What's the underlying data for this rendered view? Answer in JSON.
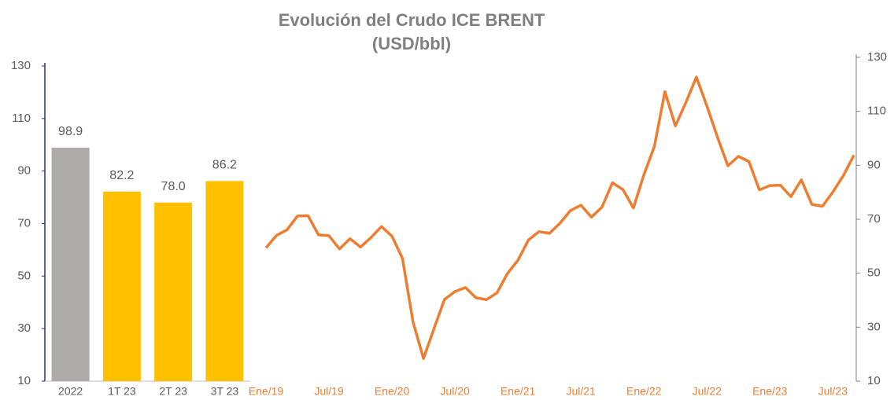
{
  "title": "Evolución del Crudo ICE BRENT",
  "subtitle": "(USD/bbl)",
  "chart_data": [
    {
      "type": "bar",
      "categories": [
        "2022",
        "1T 23",
        "2T 23",
        "3T 23"
      ],
      "values": [
        98.9,
        82.2,
        78.0,
        86.2
      ],
      "value_labels": [
        "98.9",
        "82.2",
        "78.0",
        "86.2"
      ],
      "colors": [
        "#aeaaaa",
        "#ffc000",
        "#ffc000",
        "#ffc000"
      ],
      "ylim": [
        10,
        130
      ],
      "yticks": [
        10,
        30,
        50,
        70,
        90,
        110,
        130
      ]
    },
    {
      "type": "line",
      "x": [
        "2019-01",
        "2019-02",
        "2019-03",
        "2019-04",
        "2019-05",
        "2019-06",
        "2019-07",
        "2019-08",
        "2019-09",
        "2019-10",
        "2019-11",
        "2019-12",
        "2020-01",
        "2020-02",
        "2020-03",
        "2020-04",
        "2020-05",
        "2020-06",
        "2020-07",
        "2020-08",
        "2020-09",
        "2020-10",
        "2020-11",
        "2020-12",
        "2021-01",
        "2021-02",
        "2021-03",
        "2021-04",
        "2021-05",
        "2021-06",
        "2021-07",
        "2021-08",
        "2021-09",
        "2021-10",
        "2021-11",
        "2021-12",
        "2022-01",
        "2022-02",
        "2022-03",
        "2022-04",
        "2022-05",
        "2022-06",
        "2022-07",
        "2022-08",
        "2022-09",
        "2022-10",
        "2022-11",
        "2022-12",
        "2023-01",
        "2023-02",
        "2023-03",
        "2023-04",
        "2023-05",
        "2023-06",
        "2023-07",
        "2023-08",
        "2023-09"
      ],
      "series": [
        {
          "name": "ICE Brent",
          "color": "#ed7d31",
          "values": [
            59.4,
            64.0,
            66.1,
            71.2,
            71.3,
            64.2,
            63.9,
            59.0,
            62.8,
            59.7,
            63.2,
            67.3,
            63.7,
            55.5,
            32.0,
            18.4,
            29.4,
            40.3,
            43.2,
            44.7,
            40.9,
            40.2,
            42.7,
            49.9,
            54.8,
            62.3,
            65.4,
            64.8,
            68.5,
            73.2,
            75.2,
            70.8,
            74.5,
            83.5,
            81.0,
            74.2,
            86.5,
            97.1,
            117.3,
            104.6,
            113.3,
            122.7,
            111.9,
            100.5,
            89.8,
            93.3,
            91.4,
            80.9,
            82.5,
            82.6,
            78.4,
            84.6,
            75.5,
            74.8,
            80.1,
            86.2,
            93.7
          ]
        }
      ],
      "xlim": [
        "2019-01",
        "2023-09"
      ],
      "xticks": [
        {
          "value": "2019-01",
          "label": "Ene/19"
        },
        {
          "value": "2019-07",
          "label": "Jul/19"
        },
        {
          "value": "2020-01",
          "label": "Ene/20"
        },
        {
          "value": "2020-07",
          "label": "Jul/20"
        },
        {
          "value": "2021-01",
          "label": "Ene/21"
        },
        {
          "value": "2021-07",
          "label": "Jul/21"
        },
        {
          "value": "2022-01",
          "label": "Ene/22"
        },
        {
          "value": "2022-07",
          "label": "Jul/22"
        },
        {
          "value": "2023-01",
          "label": "Ene/23"
        },
        {
          "value": "2023-07",
          "label": "Jul/23"
        }
      ],
      "y2lim": [
        10,
        130
      ],
      "y2ticks": [
        10,
        30,
        50,
        70,
        90,
        110,
        130
      ]
    }
  ]
}
